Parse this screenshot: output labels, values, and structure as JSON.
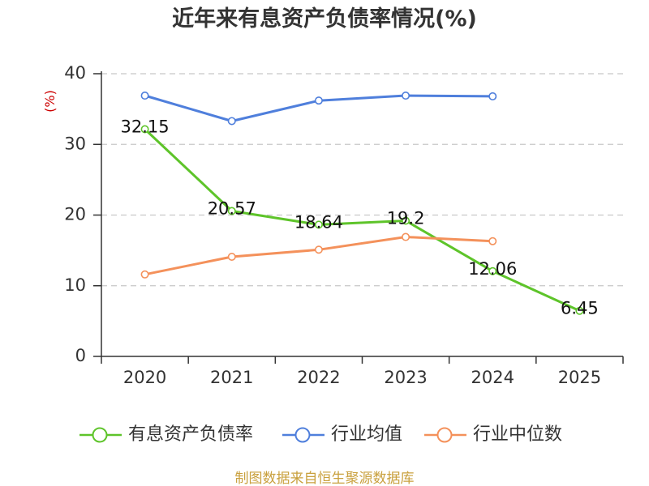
{
  "chart_data": {
    "type": "line",
    "title": "近年来有息资产负债率情况(%)",
    "xlabel": "",
    "ylabel": "(%)",
    "categories": [
      "2020",
      "2021",
      "2022",
      "2023",
      "2024",
      "2025"
    ],
    "ylim": [
      0,
      40
    ],
    "yticks": [
      0,
      10,
      20,
      30,
      40
    ],
    "grid": true,
    "legend": "bottom",
    "series": [
      {
        "name": "有息资产负债率",
        "values": [
          32.15,
          20.57,
          18.64,
          19.2,
          12.06,
          6.45
        ],
        "color": "#5ec42a",
        "show_labels": true
      },
      {
        "name": "行业均值",
        "values": [
          36.9,
          33.3,
          36.2,
          36.9,
          36.8,
          null
        ],
        "color": "#4f7fdc",
        "show_labels": false
      },
      {
        "name": "行业中位数",
        "values": [
          11.6,
          14.1,
          15.1,
          16.9,
          16.3,
          null
        ],
        "color": "#f4915b",
        "show_labels": false
      }
    ]
  },
  "source_note": "制图数据来自恒生聚源数据库",
  "colors": {
    "title": "#333333",
    "axis": "#333333",
    "grid": "#c8c8c8",
    "ylabel": "#cc0000",
    "data_label": "#111111",
    "footer": "#c9a03d"
  }
}
